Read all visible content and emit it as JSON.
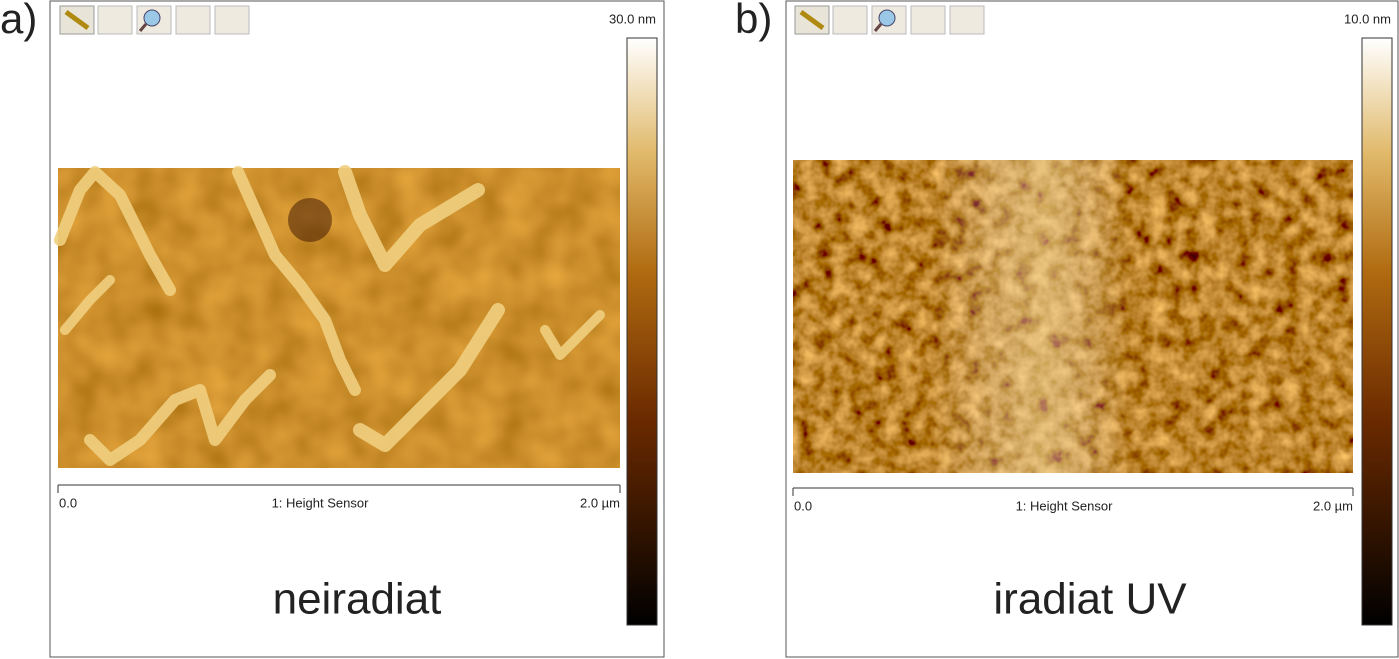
{
  "panels": [
    {
      "label": "a)",
      "scale_max": "30.0 nm",
      "x_start": "0.0",
      "x_title": "1: Height Sensor",
      "x_end": "2.0 µm",
      "caption": "neiradiat"
    },
    {
      "label": "b)",
      "scale_max": "10.0 nm",
      "x_start": "0.0",
      "x_title": "1: Height Sensor",
      "x_end": "2.0 µm",
      "caption": "iradiat UV"
    }
  ]
}
